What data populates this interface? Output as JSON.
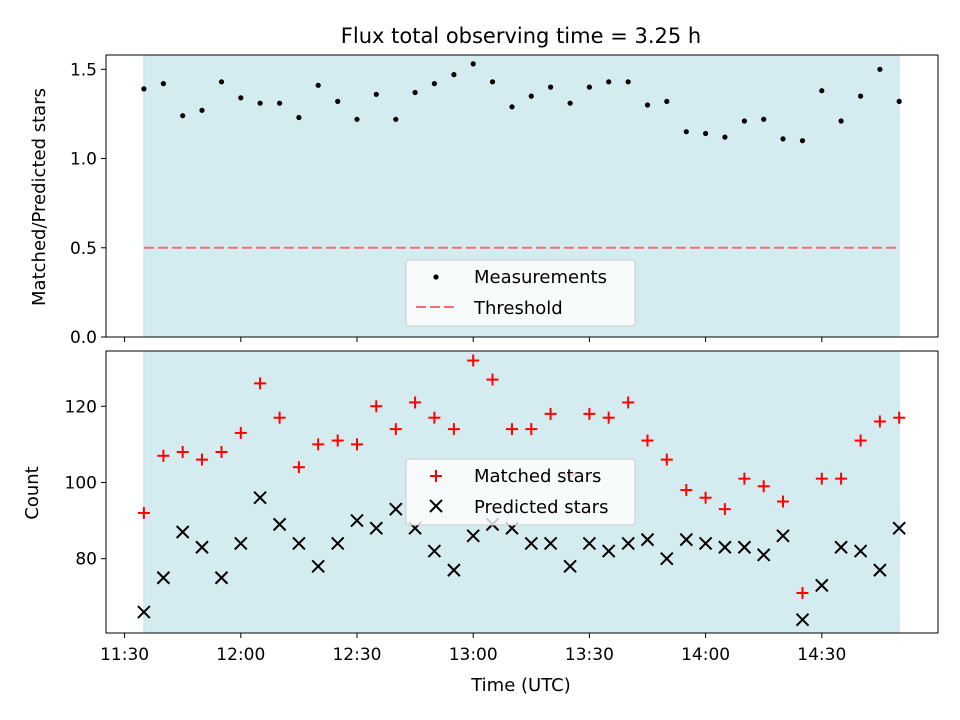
{
  "title": "Flux total observing time = 3.25 h",
  "colors": {
    "band": "#d4ebf0",
    "band_edge": "#c3dfe6",
    "threshold": "#f07070",
    "matched": "#ff0000",
    "predicted": "#000000",
    "measurement": "#000000"
  },
  "chart_data": [
    {
      "type": "scatter",
      "panel": "top",
      "ylabel": "Matched/Predicted stars",
      "xlim": [
        11.42,
        15.0
      ],
      "ylim": [
        0.0,
        1.58
      ],
      "yticks": [
        0.0,
        0.5,
        1.0,
        1.5
      ],
      "ytick_labels": [
        "0.0",
        "0.5",
        "1.0",
        "1.5"
      ],
      "shaded_span": [
        11.583,
        14.833
      ],
      "threshold": 0.5,
      "series": [
        {
          "name": "Measurements",
          "marker": "dot",
          "x": [
            11.583,
            11.667,
            11.75,
            11.833,
            11.917,
            12.0,
            12.083,
            12.167,
            12.25,
            12.333,
            12.417,
            12.5,
            12.583,
            12.667,
            12.75,
            12.833,
            12.917,
            13.0,
            13.083,
            13.167,
            13.25,
            13.333,
            13.417,
            13.5,
            13.583,
            13.667,
            13.75,
            13.833,
            13.917,
            14.0,
            14.083,
            14.167,
            14.25,
            14.333,
            14.417,
            14.5,
            14.583,
            14.667,
            14.75,
            14.833
          ],
          "y": [
            1.39,
            1.42,
            1.24,
            1.27,
            1.43,
            1.34,
            1.31,
            1.31,
            1.23,
            1.41,
            1.32,
            1.22,
            1.36,
            1.22,
            1.37,
            1.42,
            1.47,
            1.53,
            1.43,
            1.29,
            1.35,
            1.4,
            1.31,
            1.4,
            1.43,
            1.43,
            1.3,
            1.32,
            1.15,
            1.14,
            1.12,
            1.21,
            1.22,
            1.11,
            1.1,
            1.38,
            1.21,
            1.35,
            1.5,
            1.32
          ]
        }
      ],
      "legend": {
        "position": "lower-center",
        "entries": [
          "Measurements",
          "Threshold"
        ]
      }
    },
    {
      "type": "scatter",
      "panel": "bottom",
      "xlabel": "Time (UTC)",
      "ylabel": "Count",
      "xlim": [
        11.42,
        15.0
      ],
      "ylim": [
        60.5,
        134.5
      ],
      "yticks": [
        80,
        100,
        120
      ],
      "ytick_labels": [
        "80",
        "100",
        "120"
      ],
      "xticks": [
        11.5,
        12.0,
        12.5,
        13.0,
        13.5,
        14.0,
        14.5
      ],
      "xtick_labels": [
        "11:30",
        "12:00",
        "12:30",
        "13:00",
        "13:30",
        "14:00",
        "14:30"
      ],
      "shaded_span": [
        11.583,
        14.833
      ],
      "x": [
        11.583,
        11.667,
        11.75,
        11.833,
        11.917,
        12.0,
        12.083,
        12.167,
        12.25,
        12.333,
        12.417,
        12.5,
        12.583,
        12.667,
        12.75,
        12.833,
        12.917,
        13.0,
        13.083,
        13.167,
        13.25,
        13.333,
        13.417,
        13.5,
        13.583,
        13.667,
        13.75,
        13.833,
        13.917,
        14.0,
        14.083,
        14.167,
        14.25,
        14.333,
        14.417,
        14.5,
        14.583,
        14.667,
        14.75,
        14.833
      ],
      "series": [
        {
          "name": "Matched stars",
          "marker": "plus",
          "values": [
            92,
            107,
            108,
            106,
            108,
            113,
            126,
            117,
            104,
            110,
            111,
            110,
            120,
            114,
            121,
            117,
            114,
            132,
            127,
            114,
            114,
            118,
            102,
            118,
            117,
            121,
            111,
            106,
            98,
            96,
            93,
            101,
            99,
            95,
            71,
            101,
            101,
            111,
            116,
            117
          ]
        },
        {
          "name": "Predicted stars",
          "marker": "x",
          "values": [
            66,
            75,
            87,
            83,
            75,
            84,
            96,
            89,
            84,
            78,
            84,
            90,
            88,
            93,
            88,
            82,
            77,
            86,
            89,
            88,
            84,
            84,
            78,
            84,
            82,
            84,
            85,
            80,
            85,
            84,
            83,
            83,
            81,
            86,
            64,
            73,
            83,
            82,
            77,
            88
          ]
        }
      ],
      "legend": {
        "position": "center",
        "entries": [
          "Matched stars",
          "Predicted stars"
        ]
      }
    }
  ]
}
